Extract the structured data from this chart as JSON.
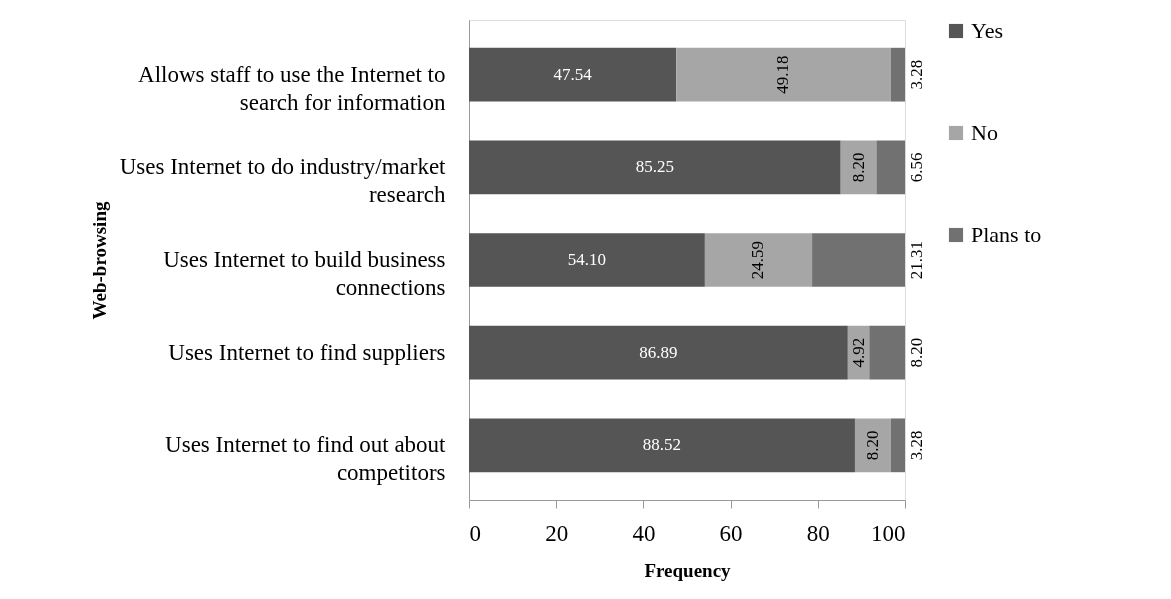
{
  "chart_data": {
    "type": "bar",
    "orientation": "horizontal",
    "stacked": true,
    "xlabel": "Frequency",
    "ylabel": "Web-browsing",
    "categories": [
      "Allows staff to use the Internet to search for information",
      "Uses Internet to do industry/market research",
      "Uses Internet to build business connections",
      "Uses Internet to find suppliers",
      "Uses Internet to find out about competitors"
    ],
    "series": [
      {
        "name": "Yes",
        "color": "#555555",
        "values": [
          47.54,
          85.25,
          54.1,
          86.89,
          88.52
        ],
        "value_labels": [
          "47.54",
          "85.25",
          "54.10",
          "86.89",
          "88.52"
        ]
      },
      {
        "name": "No",
        "color": "#a6a6a6",
        "values": [
          49.18,
          8.2,
          24.59,
          4.92,
          8.2
        ],
        "value_labels": [
          "49.18",
          "8.20",
          "24.59",
          "4.92",
          "8.20"
        ]
      },
      {
        "name": "Plans to",
        "color": "#717171",
        "values": [
          3.28,
          6.56,
          21.31,
          8.2,
          3.28
        ],
        "value_labels": [
          "3.28",
          "6.56",
          "21.31",
          "8.20",
          "3.28"
        ]
      }
    ],
    "xlim": [
      0,
      100
    ],
    "xticks": [
      0,
      20,
      40,
      60,
      80,
      100
    ],
    "grid": false,
    "legend": "right"
  }
}
